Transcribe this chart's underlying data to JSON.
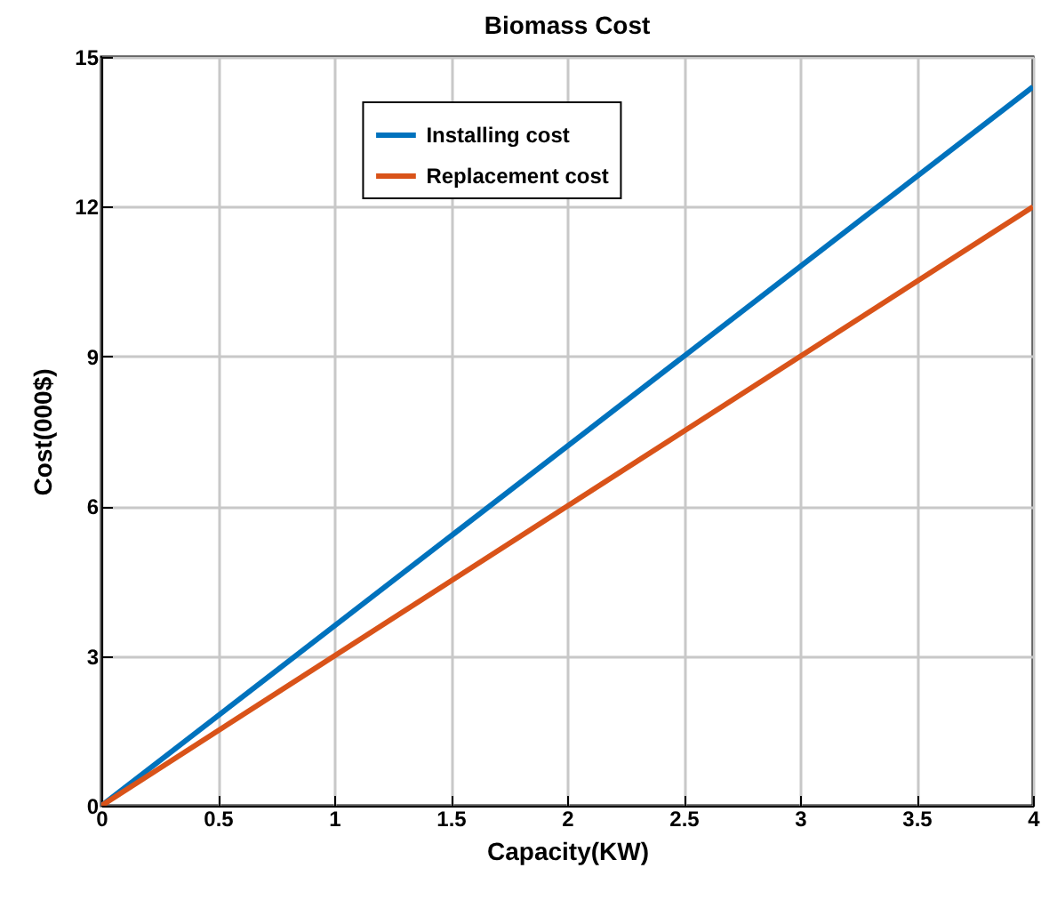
{
  "chart_data": {
    "type": "line",
    "title": "Biomass Cost",
    "xlabel": "Capacity(KW)",
    "ylabel": "Cost(000$)",
    "x": [
      0,
      4
    ],
    "series": [
      {
        "name": "Installing cost",
        "color": "#0072bd",
        "values": [
          0,
          14.4
        ]
      },
      {
        "name": "Replacement cost",
        "color": "#d95319",
        "values": [
          0,
          12
        ]
      }
    ],
    "xlim": [
      0,
      4
    ],
    "xticks": [
      0,
      0.5,
      1,
      1.5,
      2,
      2.5,
      3,
      3.5,
      4
    ],
    "ylim": [
      0,
      15
    ],
    "yticks": [
      0,
      3,
      6,
      9,
      12,
      15
    ],
    "grid": true,
    "legend": "top",
    "line_style": "solid",
    "marker": "none"
  }
}
